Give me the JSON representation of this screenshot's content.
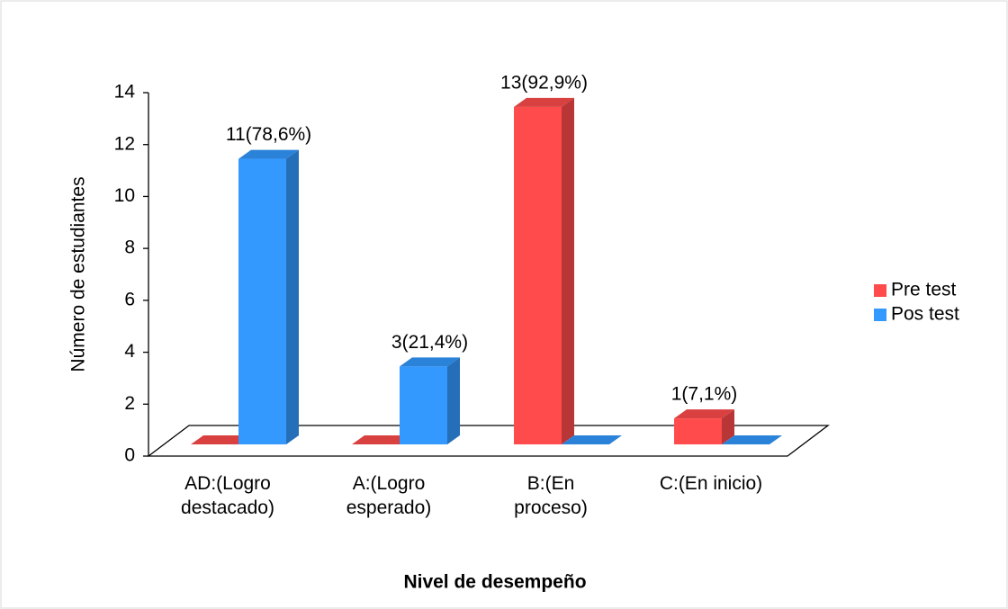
{
  "chart_data": {
    "type": "bar3d",
    "categories": [
      "AD:(Logro destacado)",
      "A:(Logro esperado)",
      "B:(En proceso)",
      "C:(En inicio)"
    ],
    "series": [
      {
        "name": "Pre test",
        "color": "#ff4b4b",
        "values": [
          0,
          0,
          13,
          1
        ],
        "value_labels": [
          null,
          null,
          "13(92,9%)",
          "1(7,1%)"
        ]
      },
      {
        "name": "Pos test",
        "color": "#3399ff",
        "values": [
          11,
          3,
          0,
          0
        ],
        "value_labels": [
          "11(78,6%)",
          "3(21,4%)",
          null,
          null
        ]
      }
    ],
    "y_label": "Número de estudiantes",
    "x_label": "Nivel de desempeño",
    "ylim": [
      0,
      14
    ],
    "yticks": [
      0,
      2,
      4,
      6,
      8,
      10,
      12,
      14
    ],
    "legend": "right"
  }
}
